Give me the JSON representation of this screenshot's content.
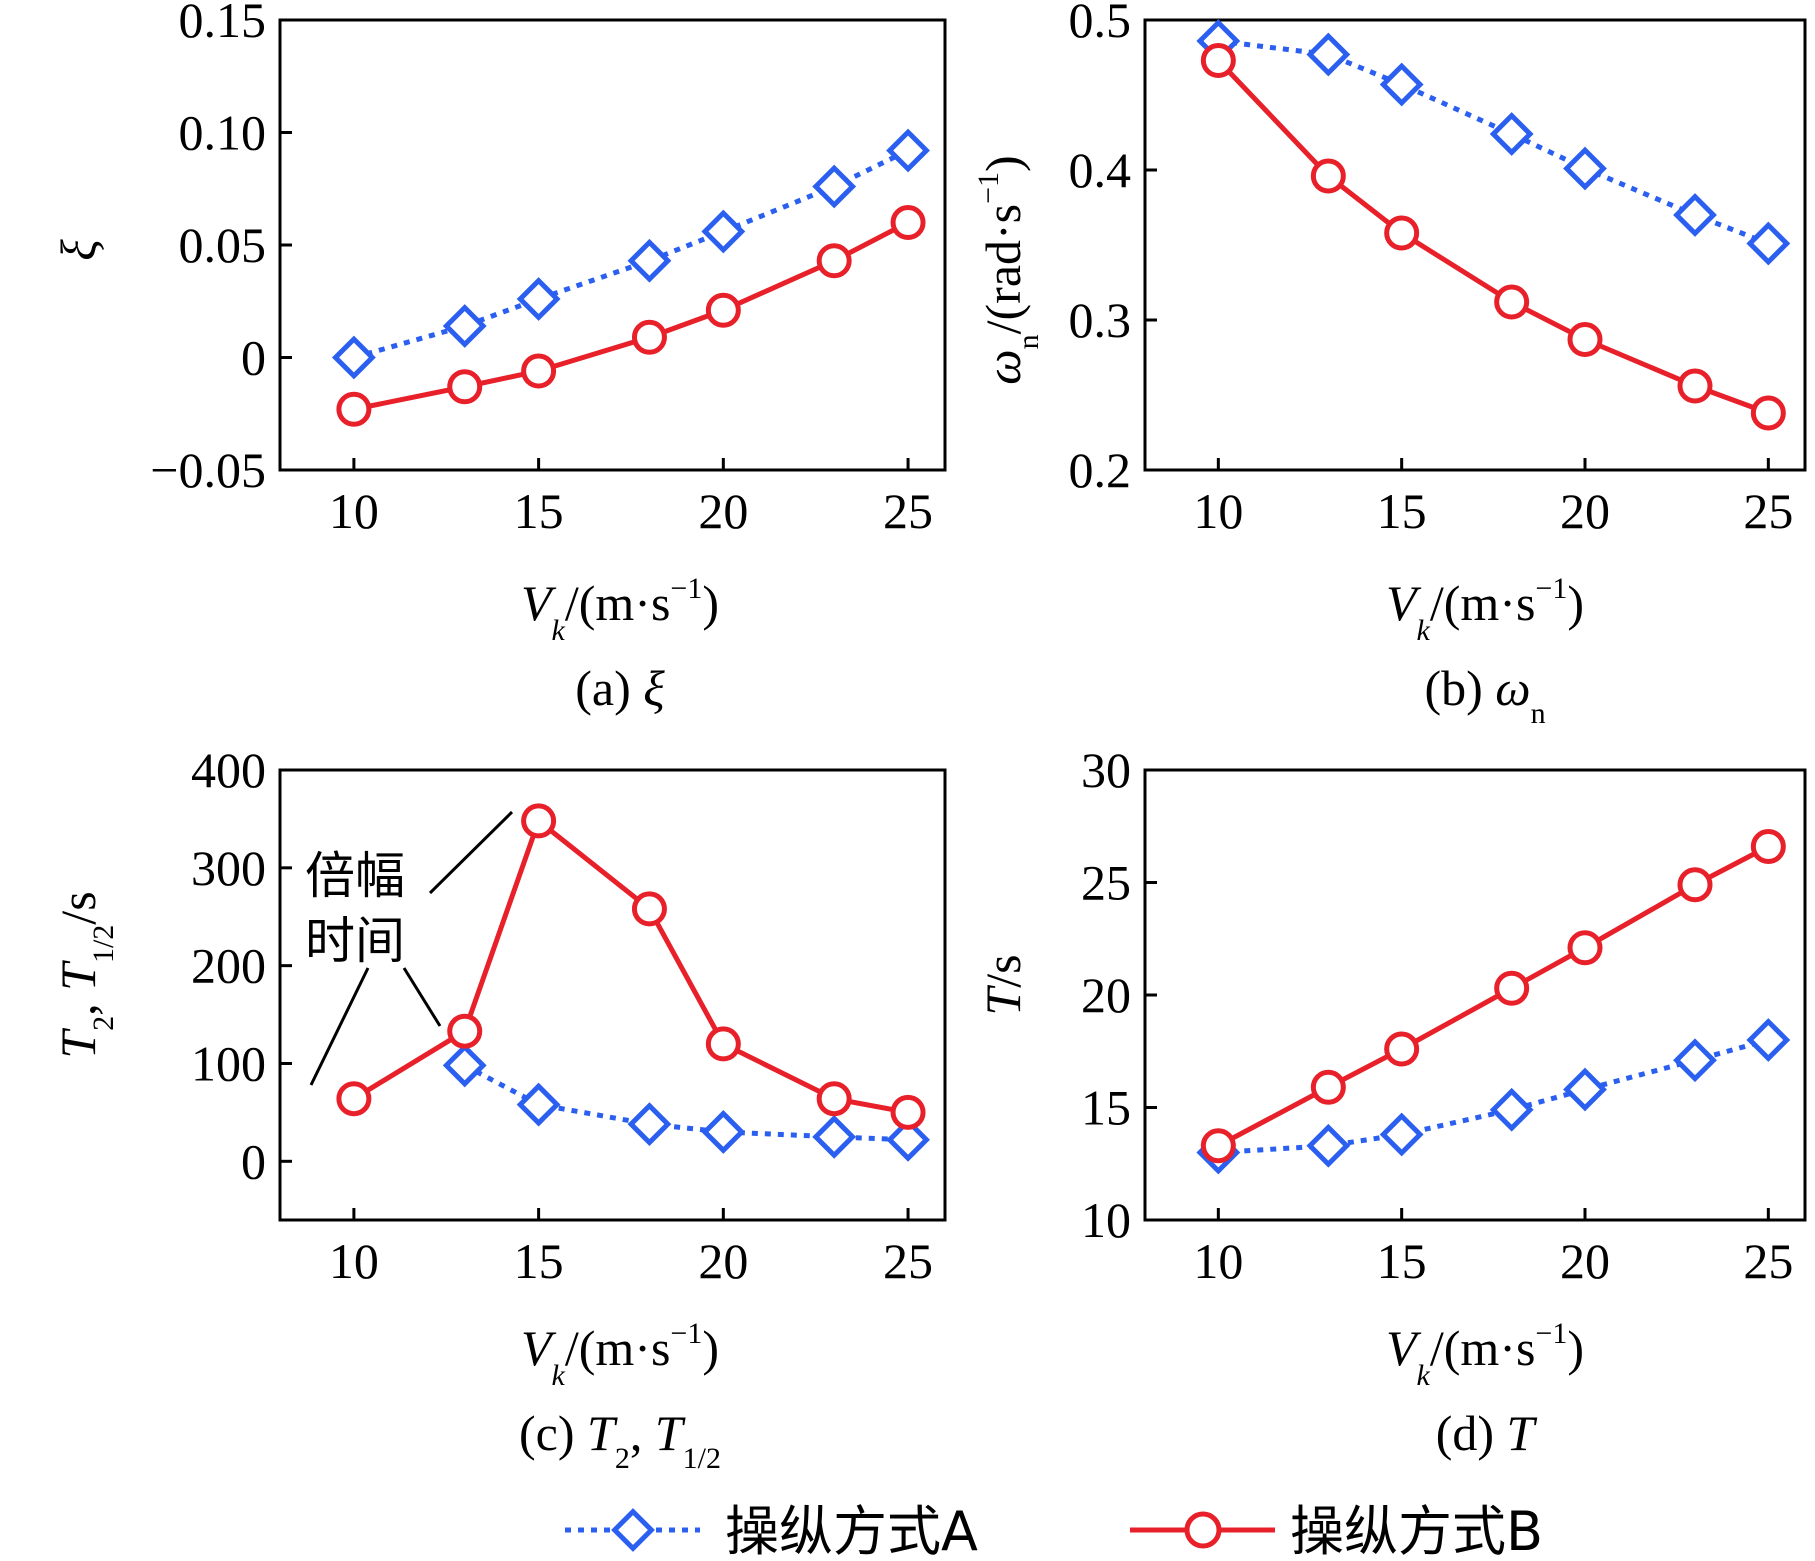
{
  "colors": {
    "seriesA": "#2b5ff0",
    "seriesB": "#e8202a"
  },
  "legend": [
    {
      "label": "操纵方式A",
      "series": "A"
    },
    {
      "label": "操纵方式B",
      "series": "B"
    }
  ],
  "chart_data": [
    {
      "type": "line",
      "id": "a",
      "caption": "(a) ξ",
      "xlabel": "V_k/(m·s⁻¹)",
      "ylabel": "ξ",
      "x": [
        10,
        13,
        15,
        18,
        20,
        23,
        25
      ],
      "xlim": [
        8,
        26
      ],
      "ylim": [
        -0.05,
        0.15
      ],
      "xticks": [
        10,
        15,
        20,
        25
      ],
      "xtick_labels": [
        "10",
        "15",
        "20",
        "25"
      ],
      "yticks": [
        -0.05,
        0,
        0.05,
        0.1,
        0.15
      ],
      "ytick_labels": [
        "−0.05",
        "0",
        "0.05",
        "0.10",
        "0.15"
      ],
      "series": [
        {
          "name": "操纵方式A",
          "values": [
            0.0,
            0.014,
            0.026,
            0.043,
            0.056,
            0.076,
            0.092
          ]
        },
        {
          "name": "操纵方式B",
          "values": [
            -0.023,
            -0.013,
            -0.006,
            0.009,
            0.021,
            0.043,
            0.06
          ]
        }
      ]
    },
    {
      "type": "line",
      "id": "b",
      "caption": "(b) ωn",
      "xlabel": "V_k/(m·s⁻¹)",
      "ylabel": "ωn/(rad·s⁻¹)",
      "x": [
        10,
        13,
        15,
        18,
        20,
        23,
        25
      ],
      "xlim": [
        8,
        26
      ],
      "ylim": [
        0.2,
        0.5
      ],
      "xticks": [
        10,
        15,
        20,
        25
      ],
      "xtick_labels": [
        "10",
        "15",
        "20",
        "25"
      ],
      "yticks": [
        0.2,
        0.3,
        0.4,
        0.5
      ],
      "ytick_labels": [
        "0.2",
        "0.3",
        "0.4",
        "0.5"
      ],
      "series": [
        {
          "name": "操纵方式A",
          "values": [
            0.486,
            0.477,
            0.457,
            0.424,
            0.401,
            0.37,
            0.351
          ]
        },
        {
          "name": "操纵方式B",
          "values": [
            0.473,
            0.396,
            0.358,
            0.312,
            0.287,
            0.256,
            0.238
          ]
        }
      ]
    },
    {
      "type": "line",
      "id": "c",
      "caption": "(c) T2, T1/2",
      "xlabel": "V_k/(m·s⁻¹)",
      "ylabel": "T2, T1/2/s",
      "x": [
        10,
        13,
        15,
        18,
        20,
        23,
        25
      ],
      "xlim": [
        8,
        26
      ],
      "ylim": [
        -60,
        400
      ],
      "xticks": [
        10,
        15,
        20,
        25
      ],
      "xtick_labels": [
        "10",
        "15",
        "20",
        "25"
      ],
      "yticks": [
        0,
        100,
        200,
        300,
        400
      ],
      "ytick_labels": [
        "0",
        "100",
        "200",
        "300",
        "400"
      ],
      "annotations": [
        {
          "text": "倍幅"
        },
        {
          "text": "时间"
        }
      ],
      "series": [
        {
          "name": "操纵方式A",
          "x": [
            13,
            15,
            18,
            20,
            23,
            25
          ],
          "values": [
            98,
            58,
            38,
            30,
            25,
            22
          ]
        },
        {
          "name": "操纵方式B",
          "x": [
            10,
            13,
            15,
            18,
            20,
            23,
            25
          ],
          "values": [
            64,
            133,
            348,
            258,
            120,
            64,
            50
          ]
        }
      ]
    },
    {
      "type": "line",
      "id": "d",
      "caption": "(d) T",
      "xlabel": "V_k/(m·s⁻¹)",
      "ylabel": "T/s",
      "x": [
        10,
        13,
        15,
        18,
        20,
        23,
        25
      ],
      "xlim": [
        8,
        26
      ],
      "ylim": [
        10,
        30
      ],
      "xticks": [
        10,
        15,
        20,
        25
      ],
      "xtick_labels": [
        "10",
        "15",
        "20",
        "25"
      ],
      "yticks": [
        10,
        15,
        20,
        25,
        30
      ],
      "ytick_labels": [
        "10",
        "15",
        "20",
        "25",
        "30"
      ],
      "series": [
        {
          "name": "操纵方式A",
          "values": [
            13.0,
            13.3,
            13.8,
            14.9,
            15.8,
            17.1,
            18.0
          ]
        },
        {
          "name": "操纵方式B",
          "values": [
            13.3,
            15.9,
            17.6,
            20.3,
            22.1,
            24.9,
            26.6
          ]
        }
      ]
    }
  ]
}
